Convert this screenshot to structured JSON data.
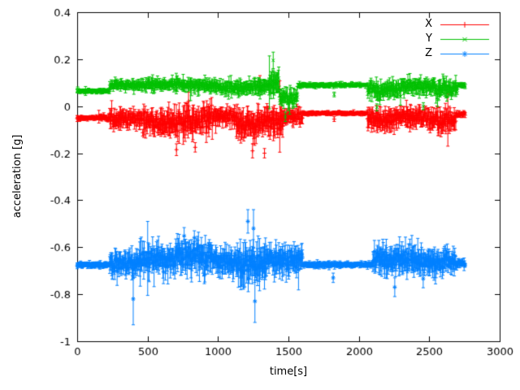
{
  "chart_data": {
    "type": "line",
    "style": "points-with-errorbars",
    "title": "",
    "xlabel": "time[s]",
    "ylabel": "acceleration [g]",
    "xlim": [
      0,
      3000
    ],
    "ylim": [
      -1,
      0.4
    ],
    "grid": false,
    "legend_position": "top-right-inside",
    "x_range_data": [
      0,
      2755
    ],
    "sample_step_s": 3.5,
    "xticks": [
      {
        "v": 0,
        "label": "0"
      },
      {
        "v": 500,
        "label": "500"
      },
      {
        "v": 1000,
        "label": "1000"
      },
      {
        "v": 1500,
        "label": "1500"
      },
      {
        "v": 2000,
        "label": "2000"
      },
      {
        "v": 2500,
        "label": "2500"
      },
      {
        "v": 3000,
        "label": "3000"
      }
    ],
    "yticks": [
      {
        "v": 0.4,
        "label": "0.4"
      },
      {
        "v": 0.2,
        "label": "0.2"
      },
      {
        "v": 0,
        "label": "0"
      },
      {
        "v": -0.2,
        "label": "-0.2"
      },
      {
        "v": -0.4,
        "label": "-0.4"
      },
      {
        "v": -0.6,
        "label": "-0.6"
      },
      {
        "v": -0.8,
        "label": "-0.8"
      },
      {
        "v": -1,
        "label": "-1"
      }
    ],
    "series": [
      {
        "name": "X",
        "color": "#ff0000",
        "marker": "plus",
        "segments": [
          [
            0,
            230,
            -0.05,
            0.012,
            0.01
          ],
          [
            230,
            470,
            -0.055,
            0.045,
            0.03
          ],
          [
            470,
            720,
            -0.07,
            0.06,
            0.045
          ],
          [
            720,
            960,
            -0.06,
            0.065,
            0.05
          ],
          [
            960,
            1130,
            -0.045,
            0.04,
            0.03
          ],
          [
            1130,
            1280,
            -0.08,
            0.065,
            0.05
          ],
          [
            1280,
            1460,
            -0.065,
            0.06,
            0.05
          ],
          [
            1460,
            1600,
            -0.045,
            0.045,
            0.03
          ],
          [
            1600,
            2060,
            -0.03,
            0.008,
            0.007
          ],
          [
            2060,
            2280,
            -0.055,
            0.05,
            0.04
          ],
          [
            2280,
            2500,
            -0.045,
            0.045,
            0.035
          ],
          [
            2500,
            2690,
            -0.06,
            0.05,
            0.04
          ],
          [
            2690,
            2756,
            -0.035,
            0.012,
            0.01
          ]
        ],
        "spikes": [
          [
            1298,
            0.1,
            0.03
          ],
          [
            1245,
            -0.19,
            0.03
          ],
          [
            705,
            -0.185,
            0.025
          ],
          [
            838,
            -0.175,
            0.02
          ],
          [
            1330,
            -0.2,
            0.02
          ],
          [
            1825,
            -0.055,
            0.01
          ]
        ]
      },
      {
        "name": "Y",
        "color": "#00c000",
        "marker": "cross",
        "segments": [
          [
            0,
            230,
            0.065,
            0.01,
            0.008
          ],
          [
            230,
            500,
            0.09,
            0.022,
            0.018
          ],
          [
            500,
            760,
            0.092,
            0.026,
            0.02
          ],
          [
            760,
            1000,
            0.088,
            0.03,
            0.022
          ],
          [
            1000,
            1230,
            0.08,
            0.032,
            0.024
          ],
          [
            1230,
            1360,
            0.085,
            0.035,
            0.03
          ],
          [
            1360,
            1435,
            0.1,
            0.04,
            0.045
          ],
          [
            1435,
            1565,
            0.035,
            0.05,
            0.03
          ],
          [
            1565,
            2060,
            0.09,
            0.01,
            0.008
          ],
          [
            2060,
            2300,
            0.07,
            0.04,
            0.03
          ],
          [
            2300,
            2540,
            0.085,
            0.038,
            0.028
          ],
          [
            2540,
            2700,
            0.075,
            0.04,
            0.03
          ],
          [
            2700,
            2756,
            0.09,
            0.012,
            0.01
          ]
        ],
        "spikes": [
          [
            1392,
            0.195,
            0.035
          ],
          [
            1478,
            -0.045,
            0.02
          ],
          [
            2128,
            -0.005,
            0.015
          ],
          [
            2458,
            0.0,
            0.015
          ],
          [
            1825,
            0.05,
            0.01
          ]
        ]
      },
      {
        "name": "Z",
        "color": "#0080ff",
        "marker": "star",
        "segments": [
          [
            0,
            230,
            -0.675,
            0.012,
            0.01
          ],
          [
            230,
            440,
            -0.67,
            0.055,
            0.045
          ],
          [
            440,
            700,
            -0.655,
            0.07,
            0.05
          ],
          [
            700,
            960,
            -0.635,
            0.07,
            0.055
          ],
          [
            960,
            1140,
            -0.66,
            0.055,
            0.045
          ],
          [
            1140,
            1340,
            -0.67,
            0.08,
            0.065
          ],
          [
            1340,
            1600,
            -0.655,
            0.07,
            0.05
          ],
          [
            1600,
            2100,
            -0.675,
            0.012,
            0.01
          ],
          [
            2100,
            2420,
            -0.65,
            0.06,
            0.05
          ],
          [
            2420,
            2690,
            -0.665,
            0.055,
            0.045
          ],
          [
            2690,
            2756,
            -0.67,
            0.02,
            0.015
          ]
        ],
        "spikes": [
          [
            398,
            -0.82,
            0.11
          ],
          [
            1252,
            -0.52,
            0.08
          ],
          [
            1262,
            -0.83,
            0.09
          ],
          [
            1212,
            -0.49,
            0.05
          ],
          [
            832,
            -0.56,
            0.03
          ],
          [
            1818,
            -0.73,
            0.02
          ],
          [
            2255,
            -0.77,
            0.04
          ]
        ]
      }
    ]
  }
}
